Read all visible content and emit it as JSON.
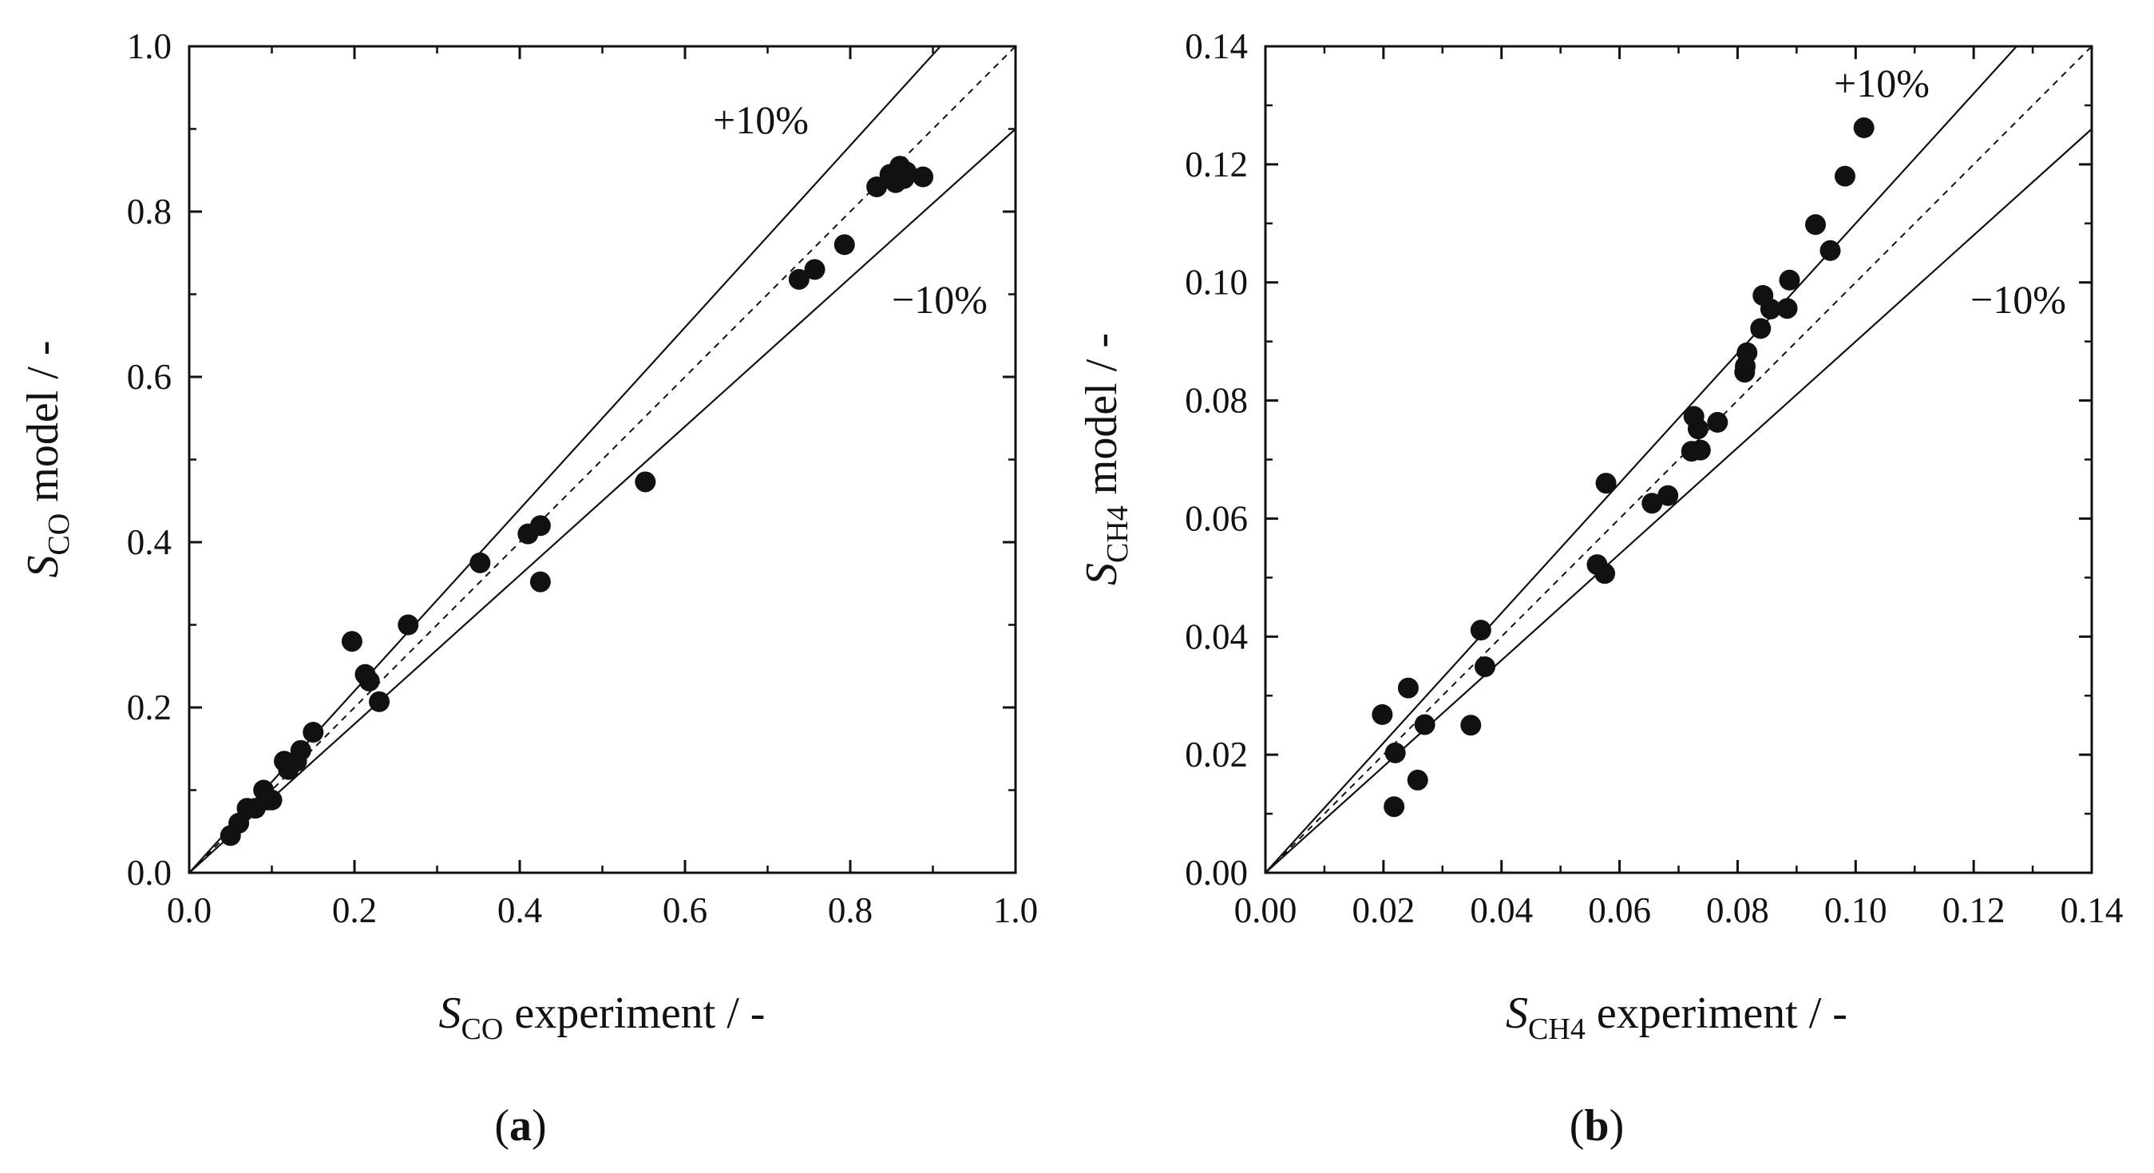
{
  "chart_data": [
    {
      "type": "scatter",
      "panel_label": "a",
      "xlabel": {
        "symbol": "S",
        "subscript": "CO",
        "text": " experiment / -"
      },
      "ylabel": {
        "symbol": "S",
        "subscript": "CO",
        "text": " model / -"
      },
      "xlim": [
        0.0,
        1.0
      ],
      "ylim": [
        0.0,
        1.0
      ],
      "x_ticks": [
        "0.0",
        "0.2",
        "0.4",
        "0.6",
        "0.8",
        "1.0"
      ],
      "y_ticks": [
        "0.0",
        "0.2",
        "0.4",
        "0.6",
        "0.8",
        "1.0"
      ],
      "tick_values": [
        0.0,
        0.2,
        0.4,
        0.6,
        0.8,
        1.0
      ],
      "minor_step": 0.1,
      "reference_lines": [
        {
          "name": "parity",
          "slope": 1.0,
          "style": "dashed"
        },
        {
          "name": "+10%",
          "slope": 1.1,
          "style": "solid",
          "label": "+10%"
        },
        {
          "name": "-10%",
          "slope": 0.9,
          "style": "solid",
          "label": "−10%"
        }
      ],
      "series": [
        {
          "name": "data",
          "points": [
            [
              0.05,
              0.045
            ],
            [
              0.06,
              0.06
            ],
            [
              0.07,
              0.078
            ],
            [
              0.08,
              0.078
            ],
            [
              0.09,
              0.1
            ],
            [
              0.095,
              0.088
            ],
            [
              0.1,
              0.088
            ],
            [
              0.115,
              0.135
            ],
            [
              0.12,
              0.125
            ],
            [
              0.13,
              0.135
            ],
            [
              0.135,
              0.148
            ],
            [
              0.15,
              0.17
            ],
            [
              0.197,
              0.28
            ],
            [
              0.213,
              0.24
            ],
            [
              0.218,
              0.232
            ],
            [
              0.23,
              0.207
            ],
            [
              0.265,
              0.3
            ],
            [
              0.352,
              0.375
            ],
            [
              0.41,
              0.41
            ],
            [
              0.425,
              0.42
            ],
            [
              0.425,
              0.352
            ],
            [
              0.552,
              0.473
            ],
            [
              0.738,
              0.718
            ],
            [
              0.757,
              0.73
            ],
            [
              0.793,
              0.76
            ],
            [
              0.832,
              0.83
            ],
            [
              0.848,
              0.845
            ],
            [
              0.855,
              0.835
            ],
            [
              0.86,
              0.855
            ],
            [
              0.865,
              0.84
            ],
            [
              0.868,
              0.848
            ],
            [
              0.888,
              0.842
            ]
          ]
        }
      ]
    },
    {
      "type": "scatter",
      "panel_label": "b",
      "xlabel": {
        "symbol": "S",
        "subscript": "CH4",
        "text": " experiment / -"
      },
      "ylabel": {
        "symbol": "S",
        "subscript": "CH4",
        "text": " model / -"
      },
      "xlim": [
        0.0,
        0.14
      ],
      "ylim": [
        0.0,
        0.14
      ],
      "x_ticks": [
        "0.00",
        "0.02",
        "0.04",
        "0.06",
        "0.08",
        "0.10",
        "0.12",
        "0.14"
      ],
      "y_ticks": [
        "0.00",
        "0.02",
        "0.04",
        "0.06",
        "0.08",
        "0.10",
        "0.12",
        "0.14"
      ],
      "tick_values": [
        0.0,
        0.02,
        0.04,
        0.06,
        0.08,
        0.1,
        0.12,
        0.14
      ],
      "minor_step": 0.01,
      "reference_lines": [
        {
          "name": "parity",
          "slope": 1.0,
          "style": "dashed"
        },
        {
          "name": "+10%",
          "slope": 1.1,
          "style": "solid",
          "label": "+10%"
        },
        {
          "name": "-10%",
          "slope": 0.9,
          "style": "solid",
          "label": "−10%"
        }
      ],
      "series": [
        {
          "name": "data",
          "points": [
            [
              0.0198,
              0.0268
            ],
            [
              0.0218,
              0.0112
            ],
            [
              0.022,
              0.0203
            ],
            [
              0.0242,
              0.0313
            ],
            [
              0.0258,
              0.0157
            ],
            [
              0.027,
              0.0251
            ],
            [
              0.0348,
              0.025
            ],
            [
              0.0365,
              0.0411
            ],
            [
              0.0372,
              0.0349
            ],
            [
              0.0562,
              0.0522
            ],
            [
              0.0575,
              0.0507
            ],
            [
              0.0577,
              0.066
            ],
            [
              0.0655,
              0.0626
            ],
            [
              0.0682,
              0.0639
            ],
            [
              0.0722,
              0.0714
            ],
            [
              0.0726,
              0.0773
            ],
            [
              0.0733,
              0.0752
            ],
            [
              0.0737,
              0.0716
            ],
            [
              0.0766,
              0.0763
            ],
            [
              0.0812,
              0.0848
            ],
            [
              0.0813,
              0.0858
            ],
            [
              0.0816,
              0.0881
            ],
            [
              0.0839,
              0.0922
            ],
            [
              0.0843,
              0.0978
            ],
            [
              0.0856,
              0.0955
            ],
            [
              0.0884,
              0.0956
            ],
            [
              0.0888,
              0.1004
            ],
            [
              0.0932,
              0.1098
            ],
            [
              0.0957,
              0.1054
            ],
            [
              0.0982,
              0.118
            ],
            [
              0.1014,
              0.1262
            ]
          ]
        }
      ]
    }
  ]
}
